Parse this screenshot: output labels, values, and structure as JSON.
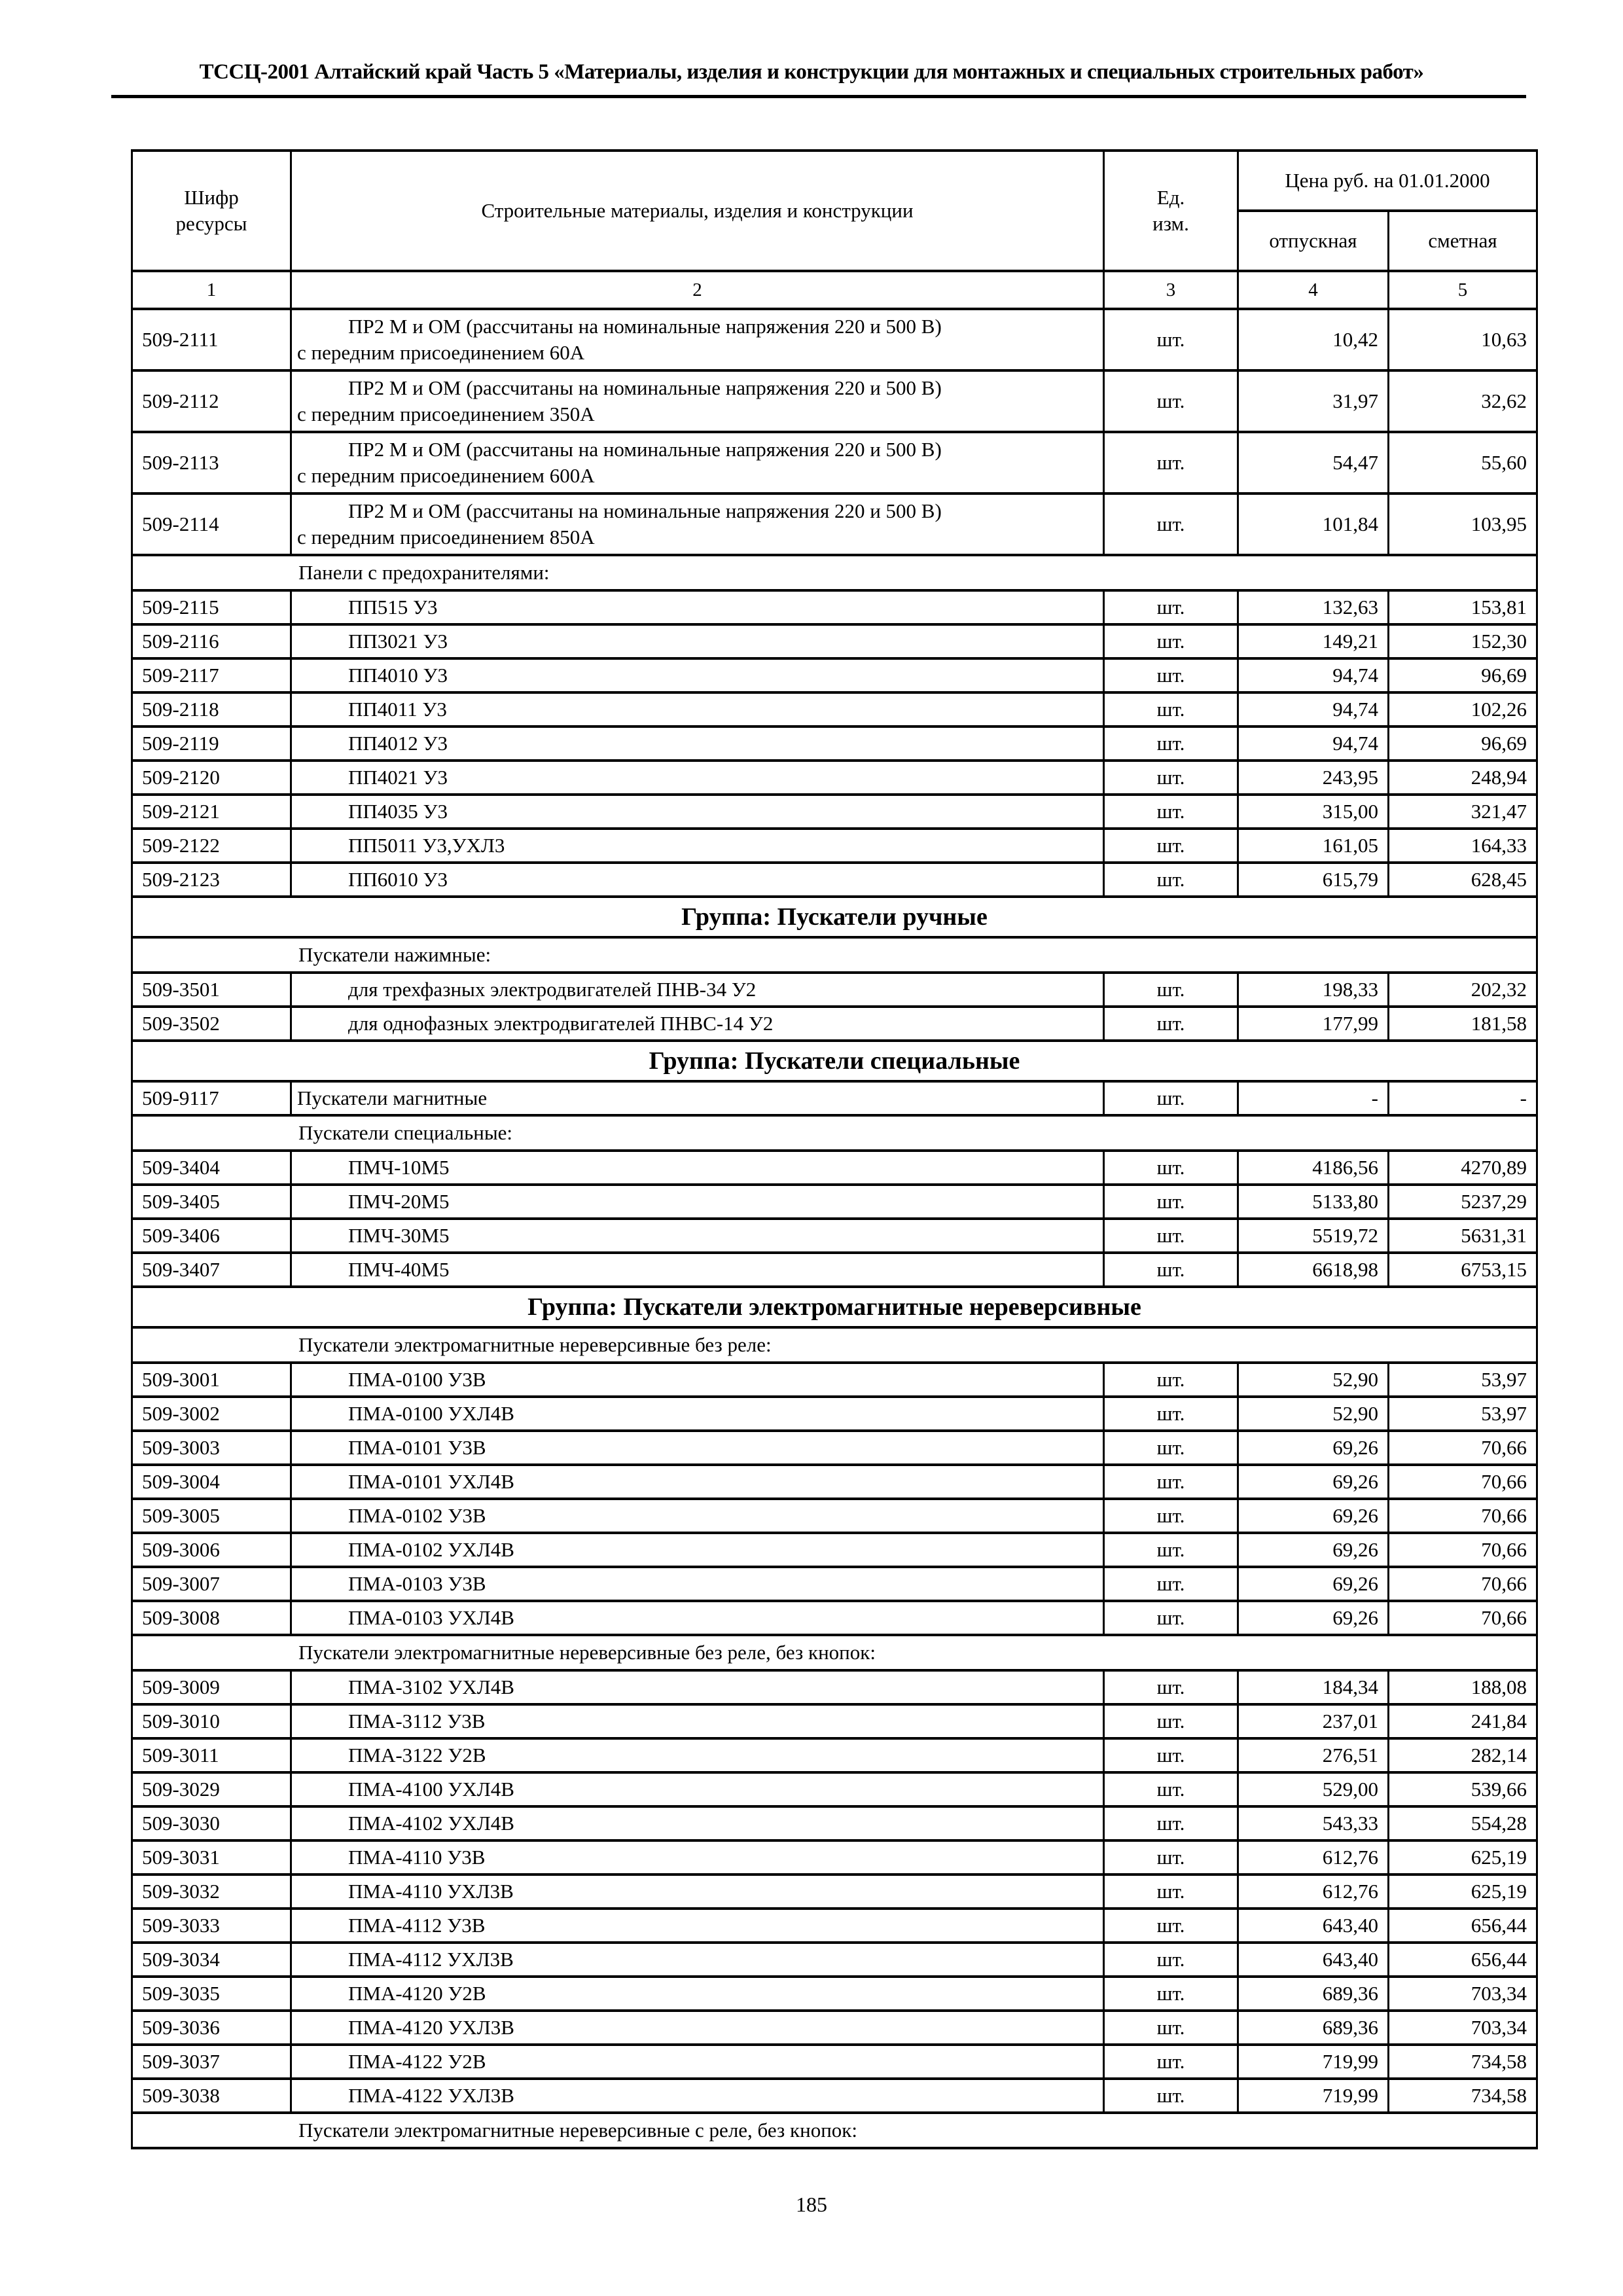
{
  "doc_header": "ТССЦ-2001 Алтайский край Часть 5 «Материалы, изделия и конструкции для монтажных и специальных строительных работ»",
  "page_number": "185",
  "table": {
    "columns": {
      "code_l1": "Шифр",
      "code_l2": "ресурсы",
      "name": "Строительные материалы, изделия и конструкции",
      "unit_l1": "Ед.",
      "unit_l2": "изм.",
      "price_group": "Цена руб. на 01.01.2000",
      "release": "отпускная",
      "estimate": "сметная",
      "numbers": [
        "1",
        "2",
        "3",
        "4",
        "5"
      ]
    },
    "rows": [
      {
        "type": "item",
        "code": "509-2111",
        "desc": [
          "ПР2 М и ОМ (рассчитаны на номинальные напряжения 220 и 500 В)",
          "с передним присоединением 60А"
        ],
        "unit": "шт.",
        "opt": "10,42",
        "est": "10,63"
      },
      {
        "type": "item",
        "code": "509-2112",
        "desc": [
          "ПР2 М и ОМ (рассчитаны на номинальные напряжения 220 и 500 В)",
          "с передним присоединением 350А"
        ],
        "unit": "шт.",
        "opt": "31,97",
        "est": "32,62"
      },
      {
        "type": "item",
        "code": "509-2113",
        "desc": [
          "ПР2 М и ОМ (рассчитаны на номинальные напряжения 220 и 500 В)",
          "с передним присоединением 600А"
        ],
        "unit": "шт.",
        "opt": "54,47",
        "est": "55,60"
      },
      {
        "type": "item",
        "code": "509-2114",
        "desc": [
          "ПР2 М и ОМ (рассчитаны на номинальные напряжения 220 и 500 В)",
          "с передним присоединением 850А"
        ],
        "unit": "шт.",
        "opt": "101,84",
        "est": "103,95"
      },
      {
        "type": "sub",
        "label": "Панели с предохранителями:"
      },
      {
        "type": "item",
        "code": "509-2115",
        "desc": [
          "ПП515 У3"
        ],
        "unit": "шт.",
        "opt": "132,63",
        "est": "153,81"
      },
      {
        "type": "item",
        "code": "509-2116",
        "desc": [
          "ПП3021 У3"
        ],
        "unit": "шт.",
        "opt": "149,21",
        "est": "152,30"
      },
      {
        "type": "item",
        "code": "509-2117",
        "desc": [
          "ПП4010 У3"
        ],
        "unit": "шт.",
        "opt": "94,74",
        "est": "96,69"
      },
      {
        "type": "item",
        "code": "509-2118",
        "desc": [
          "ПП4011 У3"
        ],
        "unit": "шт.",
        "opt": "94,74",
        "est": "102,26"
      },
      {
        "type": "item",
        "code": "509-2119",
        "desc": [
          "ПП4012 У3"
        ],
        "unit": "шт.",
        "opt": "94,74",
        "est": "96,69"
      },
      {
        "type": "item",
        "code": "509-2120",
        "desc": [
          "ПП4021 У3"
        ],
        "unit": "шт.",
        "opt": "243,95",
        "est": "248,94"
      },
      {
        "type": "item",
        "code": "509-2121",
        "desc": [
          "ПП4035 У3"
        ],
        "unit": "шт.",
        "opt": "315,00",
        "est": "321,47"
      },
      {
        "type": "item",
        "code": "509-2122",
        "desc": [
          "ПП5011 У3,УХЛ3"
        ],
        "unit": "шт.",
        "opt": "161,05",
        "est": "164,33"
      },
      {
        "type": "item",
        "code": "509-2123",
        "desc": [
          "ПП6010 У3"
        ],
        "unit": "шт.",
        "opt": "615,79",
        "est": "628,45"
      },
      {
        "type": "group",
        "label": "Группа: Пускатели ручные"
      },
      {
        "type": "sub",
        "label": "Пускатели нажимные:"
      },
      {
        "type": "item",
        "code": "509-3501",
        "desc": [
          "для трехфазных электродвигателей ПНВ-34 У2"
        ],
        "unit": "шт.",
        "opt": "198,33",
        "est": "202,32"
      },
      {
        "type": "item",
        "code": "509-3502",
        "desc": [
          "для однофазных электродвигателей ПНВС-14 У2"
        ],
        "unit": "шт.",
        "opt": "177,99",
        "est": "181,58"
      },
      {
        "type": "group",
        "label": "Группа: Пускатели специальные"
      },
      {
        "type": "item",
        "code": "509-9117",
        "desc": [
          "Пускатели магнитные"
        ],
        "flush": true,
        "unit": "шт.",
        "opt": "-",
        "est": "-"
      },
      {
        "type": "sub",
        "label": "Пускатели специальные:"
      },
      {
        "type": "item",
        "code": "509-3404",
        "desc": [
          "ПМЧ-10М5"
        ],
        "unit": "шт.",
        "opt": "4186,56",
        "est": "4270,89"
      },
      {
        "type": "item",
        "code": "509-3405",
        "desc": [
          "ПМЧ-20М5"
        ],
        "unit": "шт.",
        "opt": "5133,80",
        "est": "5237,29"
      },
      {
        "type": "item",
        "code": "509-3406",
        "desc": [
          "ПМЧ-30М5"
        ],
        "unit": "шт.",
        "opt": "5519,72",
        "est": "5631,31"
      },
      {
        "type": "item",
        "code": "509-3407",
        "desc": [
          "ПМЧ-40М5"
        ],
        "unit": "шт.",
        "opt": "6618,98",
        "est": "6753,15"
      },
      {
        "type": "group",
        "label": "Группа: Пускатели электромагнитные нереверсивные"
      },
      {
        "type": "sub",
        "label": "Пускатели электромагнитные нереверсивные без реле:"
      },
      {
        "type": "item",
        "code": "509-3001",
        "desc": [
          "ПМА-0100 У3В"
        ],
        "unit": "шт.",
        "opt": "52,90",
        "est": "53,97"
      },
      {
        "type": "item",
        "code": "509-3002",
        "desc": [
          "ПМА-0100 УХЛ4В"
        ],
        "unit": "шт.",
        "opt": "52,90",
        "est": "53,97"
      },
      {
        "type": "item",
        "code": "509-3003",
        "desc": [
          "ПМА-0101 У3В"
        ],
        "unit": "шт.",
        "opt": "69,26",
        "est": "70,66"
      },
      {
        "type": "item",
        "code": "509-3004",
        "desc": [
          "ПМА-0101 УХЛ4В"
        ],
        "unit": "шт.",
        "opt": "69,26",
        "est": "70,66"
      },
      {
        "type": "item",
        "code": "509-3005",
        "desc": [
          "ПМА-0102 У3В"
        ],
        "unit": "шт.",
        "opt": "69,26",
        "est": "70,66"
      },
      {
        "type": "item",
        "code": "509-3006",
        "desc": [
          "ПМА-0102 УХЛ4В"
        ],
        "unit": "шт.",
        "opt": "69,26",
        "est": "70,66"
      },
      {
        "type": "item",
        "code": "509-3007",
        "desc": [
          "ПМА-0103 У3В"
        ],
        "unit": "шт.",
        "opt": "69,26",
        "est": "70,66"
      },
      {
        "type": "item",
        "code": "509-3008",
        "desc": [
          "ПМА-0103 УХЛ4В"
        ],
        "unit": "шт.",
        "opt": "69,26",
        "est": "70,66"
      },
      {
        "type": "sub",
        "label": "Пускатели электромагнитные нереверсивные без реле, без кнопок:"
      },
      {
        "type": "item",
        "code": "509-3009",
        "desc": [
          "ПМА-3102 УХЛ4В"
        ],
        "unit": "шт.",
        "opt": "184,34",
        "est": "188,08"
      },
      {
        "type": "item",
        "code": "509-3010",
        "desc": [
          "ПМА-3112 У3В"
        ],
        "unit": "шт.",
        "opt": "237,01",
        "est": "241,84"
      },
      {
        "type": "item",
        "code": "509-3011",
        "desc": [
          "ПМА-3122 У2В"
        ],
        "unit": "шт.",
        "opt": "276,51",
        "est": "282,14"
      },
      {
        "type": "item",
        "code": "509-3029",
        "desc": [
          "ПМА-4100 УХЛ4В"
        ],
        "unit": "шт.",
        "opt": "529,00",
        "est": "539,66"
      },
      {
        "type": "item",
        "code": "509-3030",
        "desc": [
          "ПМА-4102 УХЛ4В"
        ],
        "unit": "шт.",
        "opt": "543,33",
        "est": "554,28"
      },
      {
        "type": "item",
        "code": "509-3031",
        "desc": [
          "ПМА-4110 У3В"
        ],
        "unit": "шт.",
        "opt": "612,76",
        "est": "625,19"
      },
      {
        "type": "item",
        "code": "509-3032",
        "desc": [
          "ПМА-4110 УХЛ3В"
        ],
        "unit": "шт.",
        "opt": "612,76",
        "est": "625,19"
      },
      {
        "type": "item",
        "code": "509-3033",
        "desc": [
          "ПМА-4112 У3В"
        ],
        "unit": "шт.",
        "opt": "643,40",
        "est": "656,44"
      },
      {
        "type": "item",
        "code": "509-3034",
        "desc": [
          "ПМА-4112 УХЛ3В"
        ],
        "unit": "шт.",
        "opt": "643,40",
        "est": "656,44"
      },
      {
        "type": "item",
        "code": "509-3035",
        "desc": [
          "ПМА-4120 У2В"
        ],
        "unit": "шт.",
        "opt": "689,36",
        "est": "703,34"
      },
      {
        "type": "item",
        "code": "509-3036",
        "desc": [
          "ПМА-4120 УХЛ3В"
        ],
        "unit": "шт.",
        "opt": "689,36",
        "est": "703,34"
      },
      {
        "type": "item",
        "code": "509-3037",
        "desc": [
          "ПМА-4122 У2В"
        ],
        "unit": "шт.",
        "opt": "719,99",
        "est": "734,58"
      },
      {
        "type": "item",
        "code": "509-3038",
        "desc": [
          "ПМА-4122 УХЛ3В"
        ],
        "unit": "шт.",
        "opt": "719,99",
        "est": "734,58"
      },
      {
        "type": "sub",
        "label": "Пускатели электромагнитные нереверсивные с реле, без кнопок:"
      }
    ]
  }
}
